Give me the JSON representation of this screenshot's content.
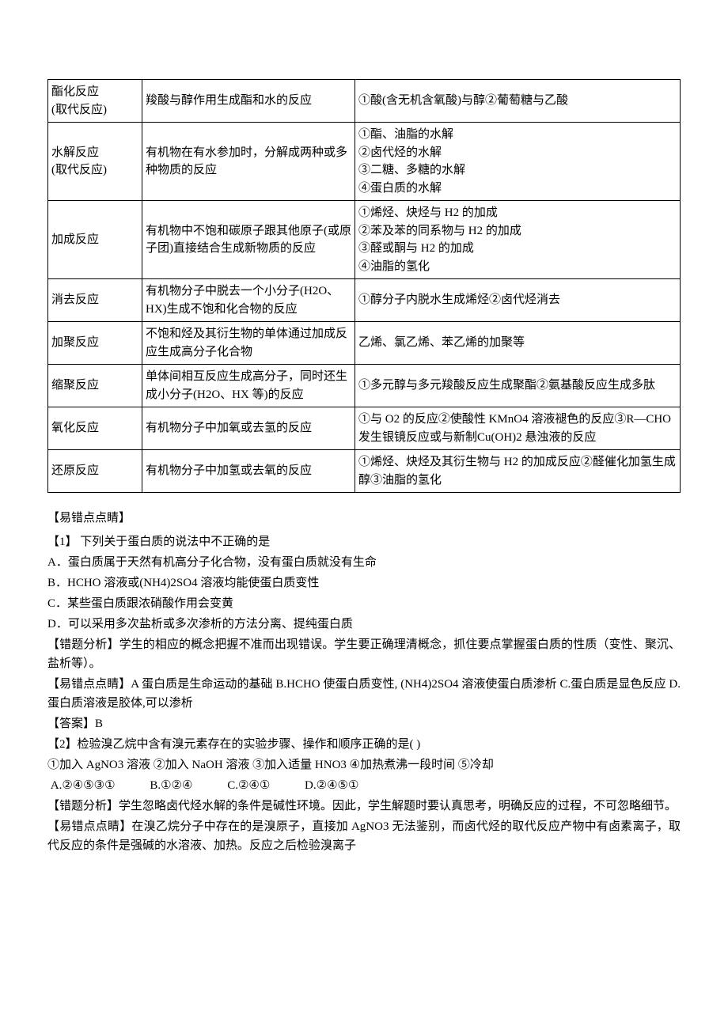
{
  "table": {
    "rows": [
      {
        "c1": "酯化反应\n(取代反应)",
        "c2": "羧酸与醇作用生成酯和水的反应",
        "c3": "①酸(含无机含氧酸)与醇②葡萄糖与乙酸"
      },
      {
        "c1": "水解反应\n(取代反应)",
        "c2": "有机物在有水参加时，分解成两种或多种物质的反应",
        "c3": "①酯、油脂的水解\n②卤代烃的水解\n③二糖、多糖的水解\n④蛋白质的水解"
      },
      {
        "c1": "加成反应",
        "c2": "有机物中不饱和碳原子跟其他原子(或原子团)直接结合生成新物质的反应",
        "c3": "①烯烃、炔烃与 H2 的加成\n②苯及苯的同系物与 H2 的加成\n③醛或酮与 H2 的加成\n④油脂的氢化"
      },
      {
        "c1": "消去反应",
        "c2": "有机物分子中脱去一个小分子(H2O、HX)生成不饱和化合物的反应",
        "c3": "①醇分子内脱水生成烯烃②卤代烃消去"
      },
      {
        "c1": "加聚反应",
        "c2": "不饱和烃及其衍生物的单体通过加成反应生成高分子化合物",
        "c3": "乙烯、氯乙烯、苯乙烯的加聚等"
      },
      {
        "c1": "缩聚反应",
        "c2": "单体间相互反应生成高分子，同时还生成小分子(H2O、HX 等)的反应",
        "c3": "①多元醇与多元羧酸反应生成聚酯②氨基酸反应生成多肽"
      },
      {
        "c1": "氧化反应",
        "c2": "有机物分子中加氧或去氢的反应",
        "c3": "①与 O2 的反应②使酸性 KMnO4 溶液褪色的反应③R—CHO 发生银镜反应或与新制Cu(OH)2 悬浊液的反应"
      },
      {
        "c1": "还原反应",
        "c2": "有机物分子中加氢或去氧的反应",
        "c3": "①烯烃、炔烃及其衍生物与 H2 的加成反应②醛催化加氢生成醇③油脂的氢化"
      }
    ]
  },
  "body": {
    "heading1": "【易错点点睛】",
    "q1_stem": "【1】 下列关于蛋白质的说法中不正确的是",
    "q1_A": "A．蛋白质属于天然有机高分子化合物，没有蛋白质就没有生命",
    "q1_B": "B．HCHO 溶液或(NH4)2SO4 溶液均能使蛋白质变性",
    "q1_C": "C．某些蛋白质跟浓硝酸作用会变黄",
    "q1_D": "D．可以采用多次盐析或多次渗析的方法分离、提纯蛋白质",
    "q1_err": "【错题分析】学生的相应的概念把握不准而出现错误。学生要正确理清概念，抓住要点掌握蛋白质的性质（变性、聚沉、盐析等）。",
    "q1_tip": "【易错点点睛】A 蛋白质是生命运动的基础        B.HCHO 使蛋白质变性, (NH4)2SO4 溶液使蛋白质渗析 C.蛋白质是显色反应          D.蛋白质溶液是胶体,可以渗析",
    "q1_ans": "【答案】B",
    "q2_stem": "【2】检验溴乙烷中含有溴元素存在的实验步骤、操作和顺序正确的是(        )",
    "q2_items": "①加入 AgNO3 溶液   ②加入 NaOH 溶液   ③加入适量 HNO3   ④加热煮沸一段时间   ⑤冷却",
    "q2_choice_A": "A.②④⑤③①",
    "q2_choice_B": "B.①②④",
    "q2_choice_C": "C.②④①",
    "q2_choice_D": "D.②④⑤①",
    "q2_err": "【错题分析】学生忽略卤代烃水解的条件是碱性环境。因此，学生解题时要认真思考，明确反应的过程，不可忽略细节。",
    "q2_tip": "【易错点点睛】在溴乙烷分子中存在的是溴原子，直接加 AgNO3 无法鉴别，而卤代烃的取代反应产物中有卤素离子，取代反应的条件是强碱的水溶液、加热。反应之后检验溴离子"
  }
}
